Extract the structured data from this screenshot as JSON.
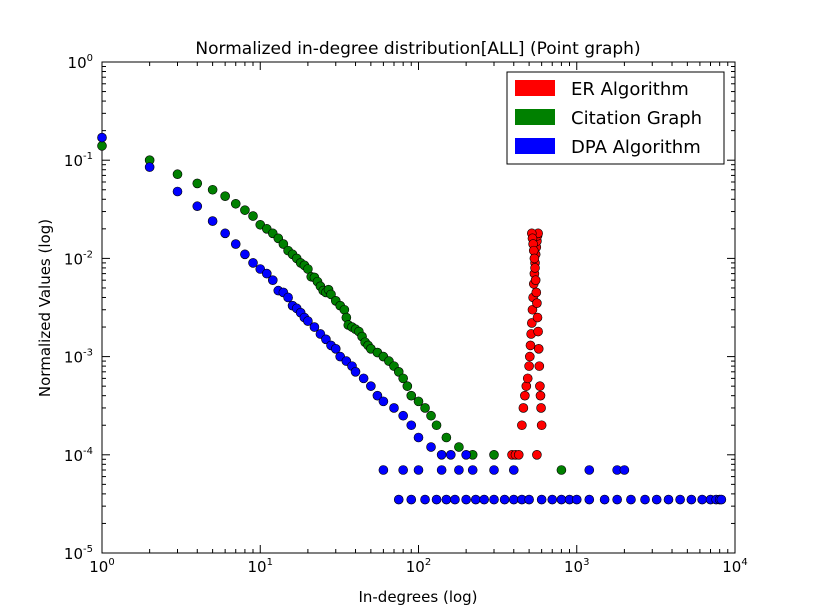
{
  "chart_data": {
    "type": "scatter",
    "title": "Normalized in-degree distribution[ALL] (Point graph)",
    "xlabel": "In-degrees (log)",
    "ylabel": "Normalized Values (log)",
    "xscale": "log",
    "yscale": "log",
    "xlim": [
      1,
      10000
    ],
    "ylim": [
      1e-05,
      1
    ],
    "grid": false,
    "legend_position": "top-right",
    "x_ticks": [
      {
        "base": "10",
        "exp": "0"
      },
      {
        "base": "10",
        "exp": "1"
      },
      {
        "base": "10",
        "exp": "2"
      },
      {
        "base": "10",
        "exp": "3"
      },
      {
        "base": "10",
        "exp": "4"
      }
    ],
    "y_ticks": [
      {
        "base": "10",
        "exp": "-5"
      },
      {
        "base": "10",
        "exp": "-4"
      },
      {
        "base": "10",
        "exp": "-3"
      },
      {
        "base": "10",
        "exp": "-2"
      },
      {
        "base": "10",
        "exp": "-1"
      },
      {
        "base": "10",
        "exp": "0"
      }
    ],
    "series": [
      {
        "name": "ER Algorithm",
        "color": "#ff0000",
        "points": [
          [
            390,
            0.0001
          ],
          [
            410,
            0.0001
          ],
          [
            430,
            0.0001
          ],
          [
            560,
            0.0001
          ],
          [
            450,
            0.0002
          ],
          [
            460,
            0.0003
          ],
          [
            470,
            0.0004
          ],
          [
            480,
            0.0005
          ],
          [
            490,
            0.0006
          ],
          [
            500,
            0.0008
          ],
          [
            505,
            0.001
          ],
          [
            510,
            0.0013
          ],
          [
            515,
            0.0017
          ],
          [
            520,
            0.0022
          ],
          [
            525,
            0.003
          ],
          [
            530,
            0.004
          ],
          [
            535,
            0.0055
          ],
          [
            540,
            0.007
          ],
          [
            545,
            0.009
          ],
          [
            550,
            0.011
          ],
          [
            555,
            0.013
          ],
          [
            560,
            0.015
          ],
          [
            565,
            0.017
          ],
          [
            570,
            0.018
          ],
          [
            520,
            0.018
          ],
          [
            525,
            0.016
          ],
          [
            530,
            0.014
          ],
          [
            535,
            0.012
          ],
          [
            540,
            0.01
          ],
          [
            545,
            0.008
          ],
          [
            550,
            0.006
          ],
          [
            555,
            0.0045
          ],
          [
            560,
            0.0035
          ],
          [
            565,
            0.0025
          ],
          [
            570,
            0.0018
          ],
          [
            575,
            0.0012
          ],
          [
            580,
            0.0008
          ],
          [
            585,
            0.0005
          ],
          [
            590,
            0.0004
          ],
          [
            595,
            0.0003
          ],
          [
            600,
            0.0002
          ]
        ]
      },
      {
        "name": "Citation Graph",
        "color": "#008000",
        "points": [
          [
            1,
            0.14
          ],
          [
            2,
            0.1
          ],
          [
            3,
            0.072
          ],
          [
            4,
            0.058
          ],
          [
            5,
            0.05
          ],
          [
            6,
            0.043
          ],
          [
            7,
            0.036
          ],
          [
            8,
            0.031
          ],
          [
            9,
            0.027
          ],
          [
            10,
            0.022
          ],
          [
            11,
            0.02
          ],
          [
            12,
            0.018
          ],
          [
            13,
            0.016
          ],
          [
            14,
            0.014
          ],
          [
            15,
            0.012
          ],
          [
            16,
            0.011
          ],
          [
            17,
            0.01
          ],
          [
            18,
            0.009
          ],
          [
            19,
            0.0085
          ],
          [
            20,
            0.0078
          ],
          [
            21,
            0.0065
          ],
          [
            22,
            0.0064
          ],
          [
            23,
            0.0058
          ],
          [
            24,
            0.0052
          ],
          [
            25,
            0.0047
          ],
          [
            26,
            0.0045
          ],
          [
            27,
            0.0048
          ],
          [
            28,
            0.0043
          ],
          [
            30,
            0.0037
          ],
          [
            32,
            0.0033
          ],
          [
            34,
            0.003
          ],
          [
            35,
            0.0025
          ],
          [
            36,
            0.0021
          ],
          [
            38,
            0.002
          ],
          [
            40,
            0.0019
          ],
          [
            42,
            0.0018
          ],
          [
            44,
            0.0016
          ],
          [
            46,
            0.0014
          ],
          [
            48,
            0.0013
          ],
          [
            50,
            0.0012
          ],
          [
            55,
            0.0011
          ],
          [
            60,
            0.001
          ],
          [
            65,
            0.0009
          ],
          [
            70,
            0.0008
          ],
          [
            75,
            0.0007
          ],
          [
            80,
            0.0006
          ],
          [
            85,
            0.0005
          ],
          [
            90,
            0.0004
          ],
          [
            100,
            0.00035
          ],
          [
            110,
            0.0003
          ],
          [
            120,
            0.00025
          ],
          [
            130,
            0.0002
          ],
          [
            150,
            0.00015
          ],
          [
            180,
            0.00012
          ],
          [
            220,
            0.0001
          ],
          [
            300,
            0.0001
          ],
          [
            800,
            7e-05
          ]
        ]
      },
      {
        "name": "DPA Algorithm",
        "color": "#0000ff",
        "points": [
          [
            1,
            0.17
          ],
          [
            2,
            0.085
          ],
          [
            3,
            0.048
          ],
          [
            4,
            0.034
          ],
          [
            5,
            0.024
          ],
          [
            6,
            0.018
          ],
          [
            7,
            0.014
          ],
          [
            8,
            0.011
          ],
          [
            9,
            0.009
          ],
          [
            10,
            0.0078
          ],
          [
            11,
            0.007
          ],
          [
            12,
            0.006
          ],
          [
            13,
            0.0047
          ],
          [
            14,
            0.0045
          ],
          [
            15,
            0.004
          ],
          [
            16,
            0.0033
          ],
          [
            17,
            0.0031
          ],
          [
            18,
            0.0028
          ],
          [
            19,
            0.0025
          ],
          [
            20,
            0.0023
          ],
          [
            22,
            0.002
          ],
          [
            24,
            0.0017
          ],
          [
            26,
            0.0015
          ],
          [
            28,
            0.0013
          ],
          [
            30,
            0.0012
          ],
          [
            32,
            0.001
          ],
          [
            35,
            0.0009
          ],
          [
            38,
            0.0008
          ],
          [
            40,
            0.0007
          ],
          [
            45,
            0.0006
          ],
          [
            50,
            0.0005
          ],
          [
            55,
            0.0004
          ],
          [
            60,
            0.00035
          ],
          [
            70,
            0.0003
          ],
          [
            80,
            0.00025
          ],
          [
            90,
            0.0002
          ],
          [
            100,
            0.00015
          ],
          [
            120,
            0.00012
          ],
          [
            140,
            0.0001
          ],
          [
            160,
            0.0001
          ],
          [
            200,
            0.0001
          ],
          [
            60,
            7e-05
          ],
          [
            80,
            7e-05
          ],
          [
            100,
            7e-05
          ],
          [
            140,
            7e-05
          ],
          [
            180,
            7e-05
          ],
          [
            220,
            7e-05
          ],
          [
            300,
            7e-05
          ],
          [
            400,
            7e-05
          ],
          [
            1200,
            7e-05
          ],
          [
            1800,
            7e-05
          ],
          [
            2000,
            7e-05
          ],
          [
            75,
            3.5e-05
          ],
          [
            90,
            3.5e-05
          ],
          [
            110,
            3.5e-05
          ],
          [
            130,
            3.5e-05
          ],
          [
            150,
            3.5e-05
          ],
          [
            170,
            3.5e-05
          ],
          [
            200,
            3.5e-05
          ],
          [
            230,
            3.5e-05
          ],
          [
            260,
            3.5e-05
          ],
          [
            300,
            3.5e-05
          ],
          [
            350,
            3.5e-05
          ],
          [
            400,
            3.5e-05
          ],
          [
            450,
            3.5e-05
          ],
          [
            500,
            3.5e-05
          ],
          [
            600,
            3.5e-05
          ],
          [
            700,
            3.5e-05
          ],
          [
            800,
            3.5e-05
          ],
          [
            900,
            3.5e-05
          ],
          [
            1000,
            3.5e-05
          ],
          [
            1200,
            3.5e-05
          ],
          [
            1500,
            3.5e-05
          ],
          [
            1800,
            3.5e-05
          ],
          [
            2200,
            3.5e-05
          ],
          [
            2700,
            3.5e-05
          ],
          [
            3200,
            3.5e-05
          ],
          [
            3800,
            3.5e-05
          ],
          [
            4500,
            3.5e-05
          ],
          [
            5300,
            3.5e-05
          ],
          [
            6200,
            3.5e-05
          ],
          [
            7000,
            3.5e-05
          ],
          [
            7600,
            3.5e-05
          ],
          [
            8000,
            3.5e-05
          ],
          [
            8200,
            3.5e-05
          ]
        ]
      }
    ]
  }
}
